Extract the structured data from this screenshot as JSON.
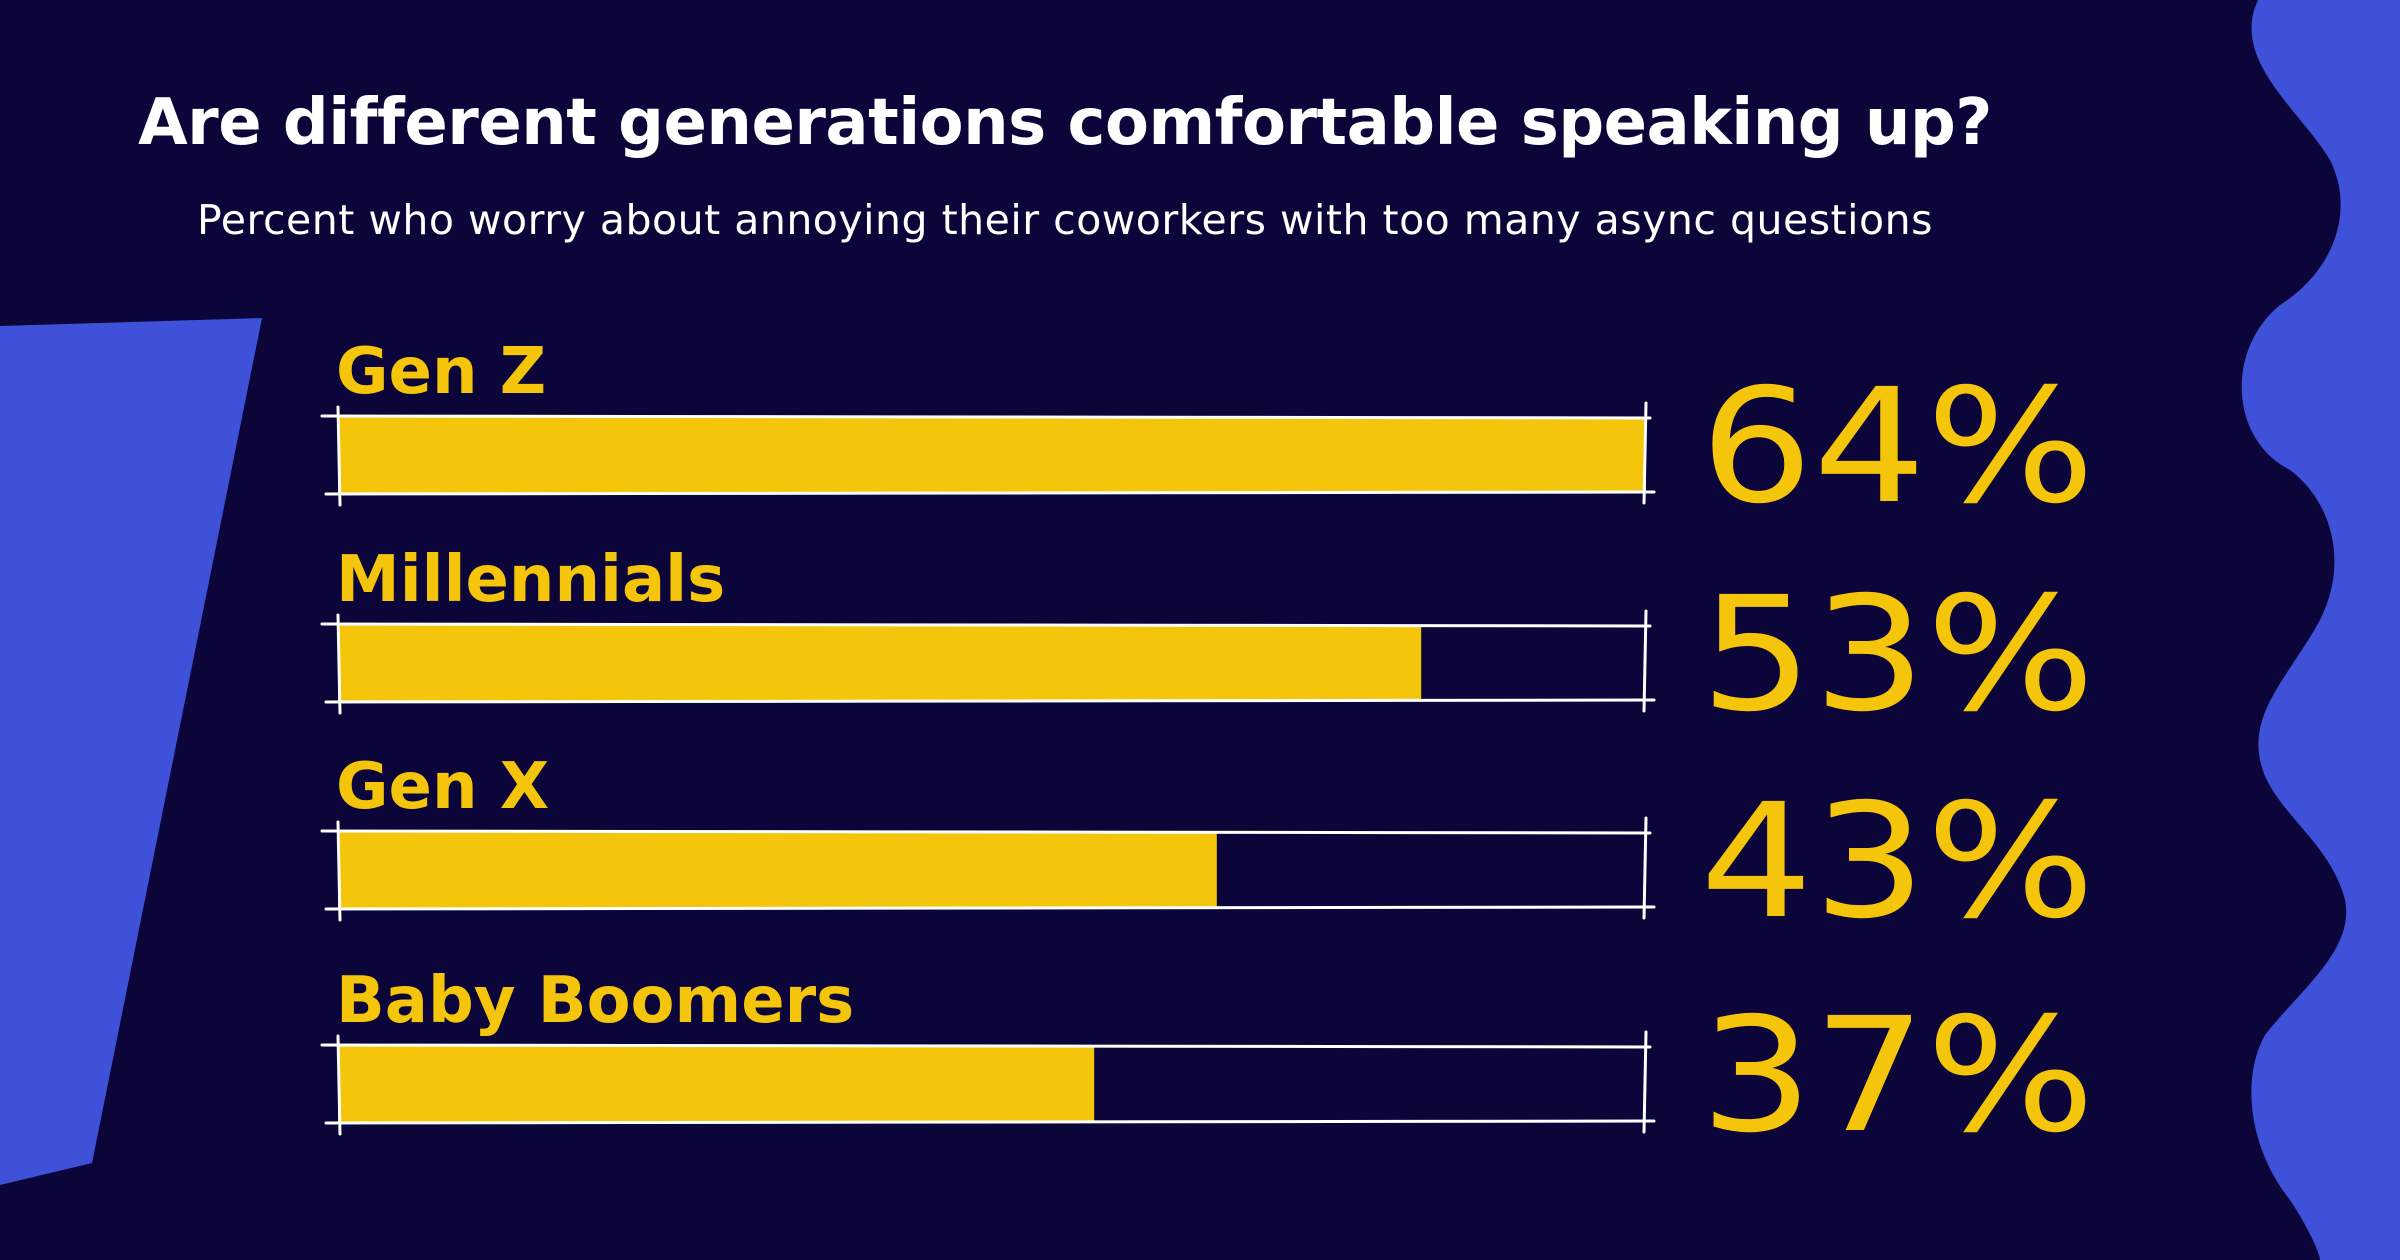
{
  "colors": {
    "background": "#0b0539",
    "accent_blue": "#3f51d9",
    "bar_fill": "#f4c50a",
    "outline": "#ffffff",
    "title_text": "#ffffff"
  },
  "chart_data": {
    "type": "bar",
    "orientation": "horizontal",
    "title": "Are different generations comfortable speaking up?",
    "subtitle": "Percent who worry about annoying their coworkers with too many async questions",
    "categories": [
      "Gen Z",
      "Millennials",
      "Gen X",
      "Baby Boomers"
    ],
    "values": [
      64,
      53,
      43,
      37
    ],
    "value_labels": [
      "64%",
      "53%",
      "43%",
      "37%"
    ],
    "xlim": [
      0,
      64
    ],
    "grid": false,
    "legend": "none"
  }
}
